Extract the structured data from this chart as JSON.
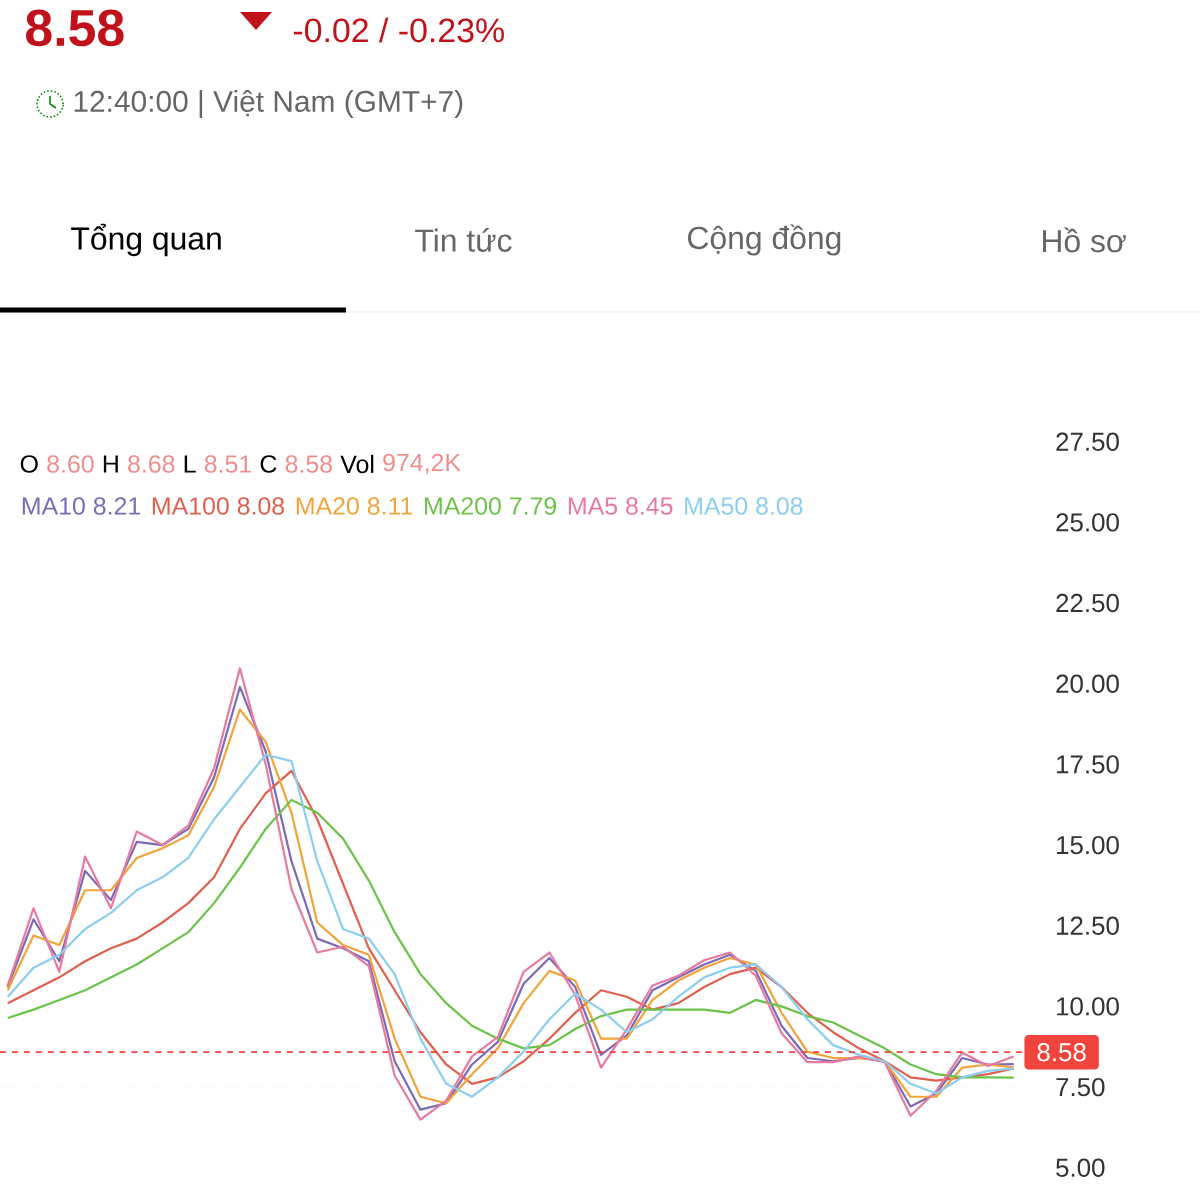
{
  "chart_data": {
    "type": "line",
    "title": "8.58",
    "subtitle": "-0.02 / -0.23%",
    "annotations": [
      "12:40:00 | Việt Nam (GMT+7)",
      "Tổng quan",
      "Tin tức",
      "Cộng đồng",
      "Hồ sơ",
      "O",
      "8.60",
      "H",
      "8.68",
      "L",
      "8.51",
      "C",
      "8.58",
      "Vol",
      "974,2K"
    ],
    "categories": [
      null,
      null,
      null,
      null,
      null,
      null,
      null,
      null,
      null,
      null,
      null,
      null,
      null,
      null,
      null,
      null,
      null,
      null,
      null,
      null,
      null,
      null,
      null,
      null,
      null,
      null,
      null,
      null,
      null,
      null,
      null,
      null,
      null,
      null,
      null,
      null,
      null,
      null,
      null,
      null
    ],
    "ylim": [
      5,
      27.5
    ],
    "yticks": [
      {
        "value": 5,
        "label": "5.00"
      },
      {
        "value": 7.5,
        "label": "7.50"
      },
      {
        "value": 10,
        "label": "10.00"
      },
      {
        "value": 12.5,
        "label": "12.50"
      },
      {
        "value": 15,
        "label": "15.00"
      },
      {
        "value": 17.5,
        "label": "17.50"
      },
      {
        "value": 20,
        "label": "20.00"
      },
      {
        "value": 22.5,
        "label": "22.50"
      },
      {
        "value": 25,
        "label": "25.00"
      },
      {
        "value": 27.5,
        "label": "27.50"
      }
    ],
    "grid": "y",
    "legend": "top",
    "marker": "none",
    "ref_lines": [
      {
        "axis": "y",
        "value": 8.58,
        "label": "8.58",
        "color": "#f0443c",
        "line_style": "dashed"
      }
    ],
    "series": [
      {
        "name": "MA10 8.21",
        "color": "#7b6bb5",
        "values": [
          10.6,
          12.7,
          11.4,
          14.2,
          13.3,
          15.1,
          15.0,
          15.5,
          17.1,
          19.9,
          17.9,
          14.5,
          12.1,
          11.8,
          11.4,
          8.3,
          6.8,
          7.0,
          8.2,
          8.9,
          10.7,
          11.5,
          10.6,
          8.5,
          9.1,
          10.5,
          10.9,
          11.3,
          11.6,
          11.1,
          9.4,
          8.4,
          8.3,
          8.4,
          8.3,
          6.9,
          7.3,
          8.4,
          8.2,
          8.21
        ]
      },
      {
        "name": "MA100 8.08",
        "color": "#e0604f",
        "values": [
          10.1,
          10.5,
          10.9,
          11.4,
          11.8,
          12.1,
          12.6,
          13.2,
          14.0,
          15.5,
          16.6,
          17.3,
          15.8,
          13.8,
          11.8,
          10.5,
          9.2,
          8.2,
          7.6,
          7.8,
          8.3,
          9.0,
          9.8,
          10.5,
          10.3,
          9.9,
          10.1,
          10.6,
          11.0,
          11.2,
          10.6,
          9.8,
          9.2,
          8.7,
          8.3,
          7.8,
          7.7,
          7.8,
          7.9,
          8.08
        ]
      },
      {
        "name": "MA20 8.11",
        "color": "#f2a33a",
        "values": [
          10.5,
          12.2,
          11.9,
          13.6,
          13.6,
          14.6,
          14.9,
          15.3,
          16.8,
          19.2,
          18.2,
          16.0,
          12.6,
          11.9,
          11.6,
          9.0,
          7.2,
          7.0,
          7.9,
          8.7,
          10.1,
          11.1,
          10.8,
          9.0,
          9.0,
          10.2,
          10.8,
          11.2,
          11.5,
          11.3,
          9.8,
          8.6,
          8.4,
          8.4,
          8.3,
          7.2,
          7.2,
          8.1,
          8.2,
          8.11
        ]
      },
      {
        "name": "MA200 7.79",
        "color": "#6cc24a",
        "values": [
          9.64,
          9.9,
          10.2,
          10.5,
          10.9,
          11.3,
          11.8,
          12.3,
          13.2,
          14.3,
          15.5,
          16.4,
          16.0,
          15.2,
          13.9,
          12.3,
          11.0,
          10.1,
          9.4,
          9.0,
          8.7,
          8.8,
          9.3,
          9.7,
          9.9,
          9.9,
          9.9,
          9.9,
          9.8,
          10.2,
          10.0,
          9.7,
          9.5,
          9.1,
          8.7,
          8.2,
          7.9,
          7.8,
          7.8,
          7.79
        ]
      },
      {
        "name": "MA5 8.45",
        "color": "#e87aa0",
        "values": [
          10.65,
          13.04,
          11.07,
          14.64,
          13.04,
          15.42,
          15.0,
          15.6,
          17.38,
          20.48,
          17.5,
          13.63,
          11.67,
          11.85,
          11.25,
          7.86,
          6.49,
          7.08,
          8.45,
          9.05,
          11.07,
          11.67,
          10.36,
          8.1,
          9.29,
          10.65,
          10.95,
          11.43,
          11.67,
          10.95,
          9.17,
          8.27,
          8.27,
          8.45,
          8.27,
          6.61,
          7.38,
          8.57,
          8.15,
          8.45
        ]
      },
      {
        "name": "MA50 8.08",
        "color": "#8ccdf0",
        "values": [
          10.3,
          11.2,
          11.6,
          12.4,
          12.9,
          13.6,
          14.0,
          14.6,
          15.8,
          16.8,
          17.8,
          17.6,
          14.5,
          12.4,
          12.1,
          11.0,
          9.0,
          7.6,
          7.2,
          7.8,
          8.6,
          9.6,
          10.4,
          9.9,
          9.2,
          9.6,
          10.3,
          10.9,
          11.2,
          11.3,
          10.6,
          9.6,
          8.8,
          8.5,
          8.3,
          7.6,
          7.3,
          7.8,
          8.0,
          8.08
        ]
      }
    ]
  }
}
